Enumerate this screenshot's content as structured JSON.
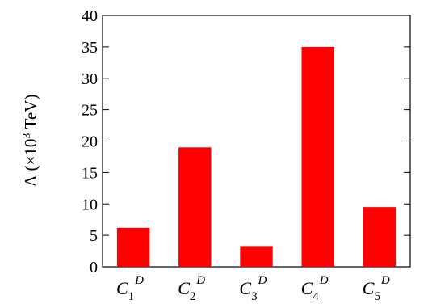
{
  "chart_data": {
    "type": "bar",
    "categories": [
      {
        "base": "C",
        "sub": "1",
        "sup": "D"
      },
      {
        "base": "C",
        "sub": "2",
        "sup": "D"
      },
      {
        "base": "C",
        "sub": "3",
        "sup": "D"
      },
      {
        "base": "C",
        "sub": "4",
        "sup": "D"
      },
      {
        "base": "C",
        "sub": "5",
        "sup": "D"
      }
    ],
    "values": [
      6.2,
      19,
      3.3,
      35,
      9.5
    ],
    "title": "",
    "xlabel": "",
    "ylabel": {
      "prefix": "Λ (×10",
      "sup": "3",
      "suffix": " TeV)"
    },
    "ylim": [
      0,
      40
    ],
    "yticks": [
      0,
      5,
      10,
      15,
      20,
      25,
      30,
      35,
      40
    ],
    "bar_color": "#ff0000",
    "grid": false,
    "legend": "none"
  }
}
